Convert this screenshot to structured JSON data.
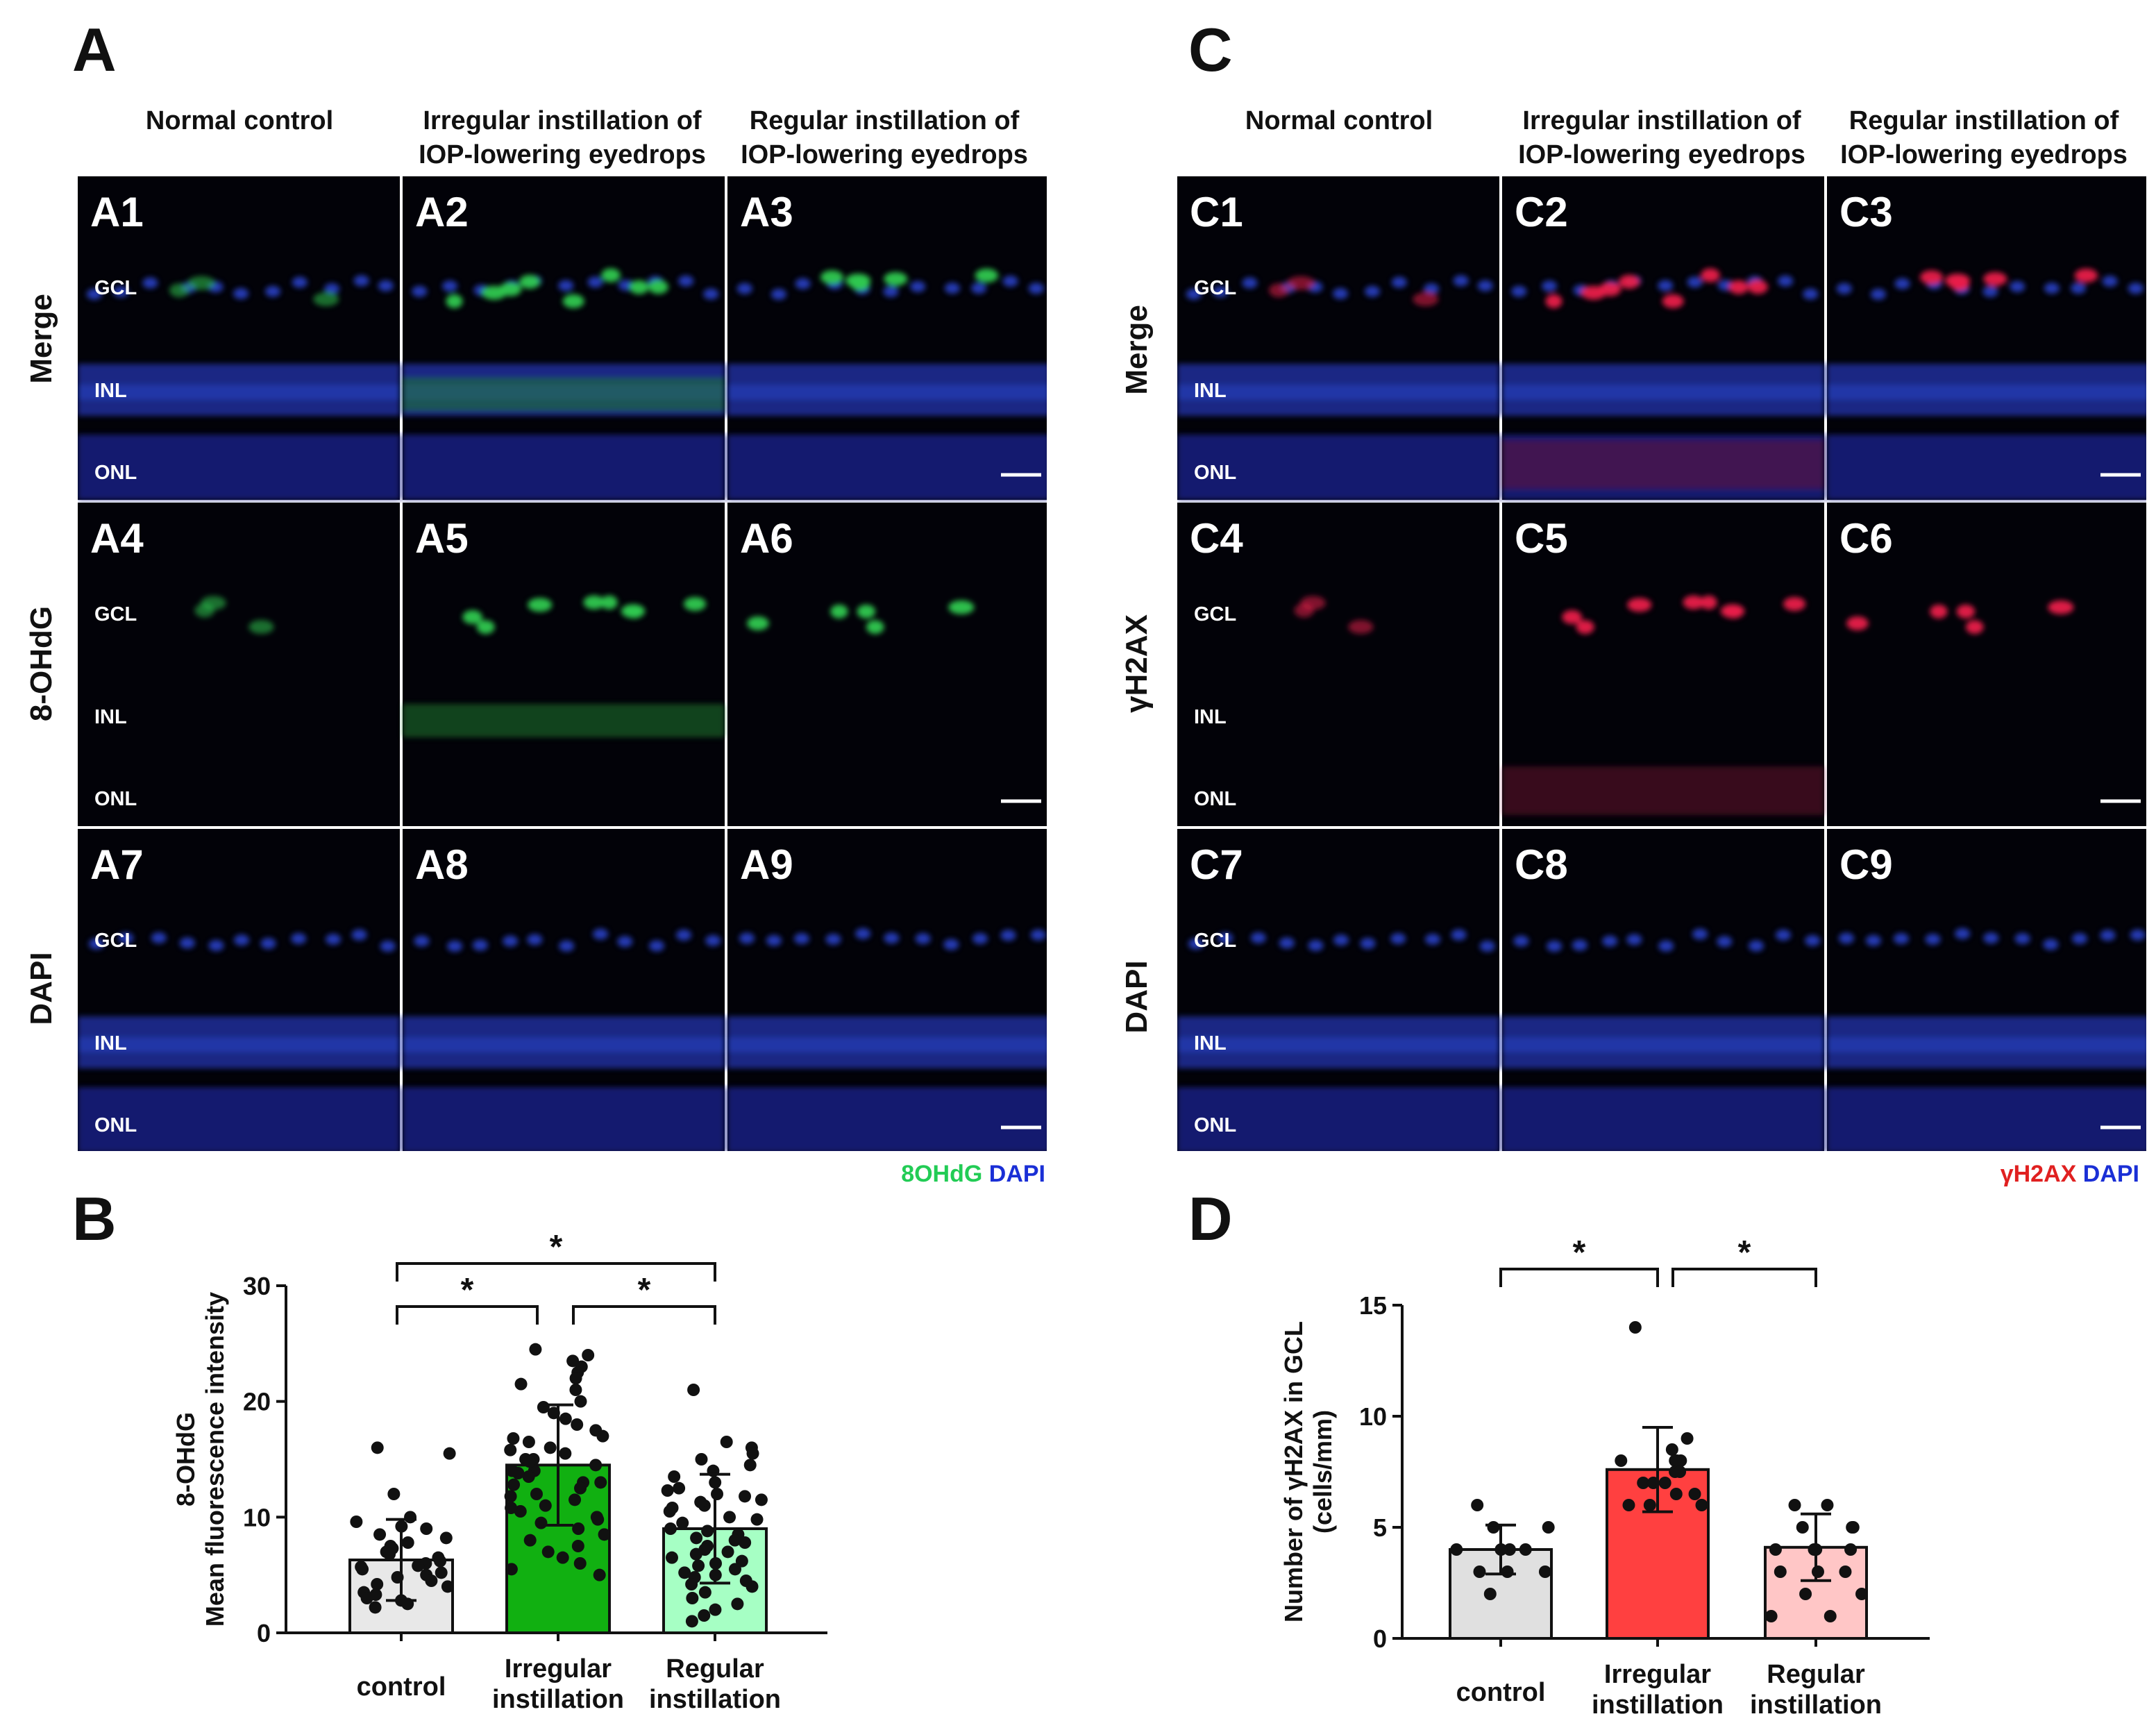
{
  "panel_letters": {
    "A": "A",
    "B": "B",
    "C": "C",
    "D": "D"
  },
  "panel_a": {
    "columns": [
      {
        "line1": "",
        "line2": "Normal control"
      },
      {
        "line1": "Irregular instillation of",
        "line2": "IOP-lowering eyedrops"
      },
      {
        "line1": "Regular instillation of",
        "line2": "IOP-lowering eyedrops"
      }
    ],
    "rows": [
      "Merge",
      "8-OHdG",
      "DAPI"
    ],
    "tile_labels": [
      "A1",
      "A2",
      "A3",
      "A4",
      "A5",
      "A6",
      "A7",
      "A8",
      "A9"
    ],
    "layers": [
      "GCL",
      "INL",
      "ONL"
    ],
    "legend": [
      "8OHdG",
      "DAPI"
    ],
    "legend_colors": [
      "#22cc55",
      "#1a2fd6"
    ]
  },
  "panel_c": {
    "columns": [
      {
        "line1": "",
        "line2": "Normal control"
      },
      {
        "line1": "Irregular instillation of",
        "line2": "IOP-lowering eyedrops"
      },
      {
        "line1": "Regular instillation of",
        "line2": "IOP-lowering eyedrops"
      }
    ],
    "rows": [
      "Merge",
      "γH2AX",
      "DAPI"
    ],
    "tile_labels": [
      "C1",
      "C2",
      "C3",
      "C4",
      "C5",
      "C6",
      "C7",
      "C8",
      "C9"
    ],
    "layers": [
      "GCL",
      "INL",
      "ONL"
    ],
    "legend": [
      "γH2AX",
      "DAPI"
    ],
    "legend_colors": [
      "#e02020",
      "#1a2fd6"
    ]
  },
  "chart_data": [
    {
      "panel": "B",
      "type": "bar",
      "ylabel_lines": [
        "8-OHdG",
        "Mean fluorescence intensity"
      ],
      "ylim": [
        0,
        30
      ],
      "yticks": [
        0,
        10,
        20,
        30
      ],
      "categories": [
        {
          "line1": "control",
          "line2": ""
        },
        {
          "line1": "Irregular",
          "line2": "instillation"
        },
        {
          "line1": "Regular",
          "line2": "instillation"
        }
      ],
      "means": [
        6.3,
        14.5,
        9.0
      ],
      "sd": [
        3.5,
        5.2,
        4.7
      ],
      "colors": [
        "#e8e8e8",
        "#11b011",
        "#a6ffc4"
      ],
      "points": [
        [
          16.0,
          15.5,
          12.0,
          10.0,
          9.6,
          9.2,
          9.0,
          8.5,
          8.2,
          7.8,
          7.5,
          7.0,
          7.3,
          6.8,
          6.5,
          6.0,
          5.8,
          5.5,
          5.2,
          5.0,
          4.8,
          4.5,
          4.2,
          4.0,
          3.5,
          3.3,
          3.0,
          2.8,
          2.5,
          2.2,
          6.2,
          5.7
        ],
        [
          24.5,
          24.0,
          23.5,
          23.0,
          22.5,
          22.0,
          21.5,
          21.0,
          20.0,
          19.5,
          19.0,
          18.5,
          18.0,
          17.5,
          17.0,
          16.5,
          16.0,
          15.5,
          15.0,
          15.0,
          14.5,
          14.0,
          14.0,
          13.5,
          13.0,
          13.0,
          12.5,
          12.0,
          11.5,
          11.0,
          10.5,
          10.0,
          9.5,
          9.0,
          8.5,
          8.0,
          7.5,
          7.0,
          6.5,
          6.0,
          5.5,
          5.0,
          16.8,
          15.8,
          14.8,
          13.8,
          12.8,
          11.8,
          10.8,
          9.8
        ],
        [
          21.0,
          16.5,
          16.0,
          15.5,
          15.0,
          14.5,
          14.0,
          13.5,
          13.0,
          12.5,
          12.0,
          11.8,
          11.5,
          11.0,
          10.5,
          10.0,
          9.5,
          9.0,
          8.8,
          8.5,
          8.2,
          8.0,
          7.8,
          7.5,
          7.2,
          7.0,
          6.8,
          6.5,
          6.2,
          6.0,
          5.8,
          5.5,
          5.2,
          5.0,
          4.8,
          4.5,
          4.2,
          4.0,
          3.5,
          3.0,
          2.5,
          2.0,
          1.5,
          1.0,
          9.8,
          10.8,
          11.3,
          12.3
        ]
      ],
      "brackets": [
        {
          "from": 0,
          "to": 2,
          "label": "*"
        },
        {
          "from": 0,
          "to": 1,
          "label": "*"
        },
        {
          "from": 1,
          "to": 2,
          "label": "*"
        }
      ]
    },
    {
      "panel": "D",
      "type": "bar",
      "ylabel_lines": [
        "Number of γH2AX in GCL",
        "(cells/mm)"
      ],
      "ylim": [
        0,
        15
      ],
      "yticks": [
        0,
        5,
        10,
        15
      ],
      "categories": [
        {
          "line1": "control",
          "line2": ""
        },
        {
          "line1": "Irregular",
          "line2": "instillation"
        },
        {
          "line1": "Regular",
          "line2": "instillation"
        }
      ],
      "means": [
        4.0,
        7.6,
        4.1
      ],
      "sd": [
        1.1,
        1.9,
        1.5
      ],
      "colors": [
        "#e0e0e0",
        "#ff4040",
        "#ffc6c6"
      ],
      "points": [
        [
          6.0,
          5.0,
          5.0,
          4.0,
          4.0,
          4.0,
          4.0,
          3.0,
          3.0,
          3.0,
          2.0
        ],
        [
          14.0,
          9.0,
          8.5,
          8.0,
          8.0,
          8.0,
          8.0,
          7.5,
          7.5,
          7.0,
          7.0,
          7.0,
          6.5,
          6.5,
          6.0,
          6.0,
          6.0
        ],
        [
          6.0,
          6.0,
          5.0,
          5.0,
          5.0,
          4.0,
          4.0,
          4.0,
          4.0,
          3.0,
          3.0,
          3.0,
          2.0,
          2.0,
          1.0,
          1.0
        ]
      ],
      "brackets": [
        {
          "from": 0,
          "to": 1,
          "label": "*"
        },
        {
          "from": 1,
          "to": 2,
          "label": "*"
        }
      ]
    }
  ]
}
